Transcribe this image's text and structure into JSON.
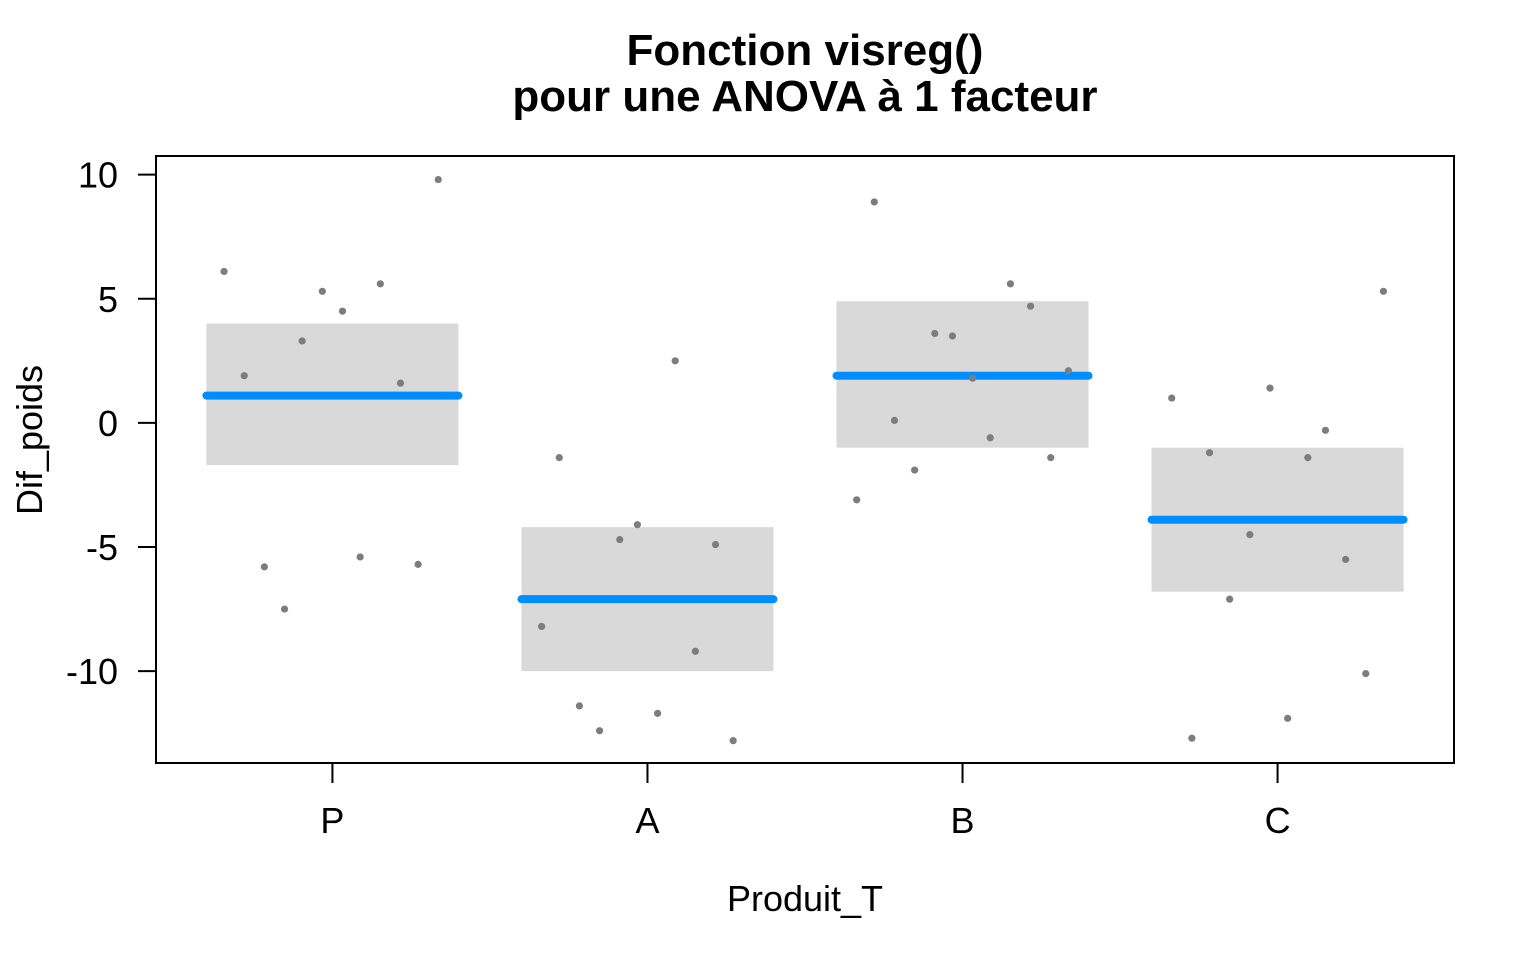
{
  "chart_data": {
    "type": "scatter",
    "variant": "visreg-anova-partial-residuals",
    "title_lines": [
      "Fonction visreg()",
      "pour une ANOVA à 1 facteur"
    ],
    "xlabel": "Produit_T",
    "ylabel": "Dif_poids",
    "categories": [
      "P",
      "A",
      "B",
      "C"
    ],
    "y_ticks": [
      10,
      5,
      0,
      -5,
      -10
    ],
    "ylim": [
      -13.7,
      10.75
    ],
    "xlim": [
      0.44,
      4.56
    ],
    "band_half_width": 0.4,
    "grid": false,
    "legend_position": "none",
    "colors": {
      "fit_line": "#008DFF",
      "ci_band": "#D9D9D9",
      "points": "#7D7D7D",
      "axis": "#000000",
      "background": "#FFFFFF"
    },
    "groups": [
      {
        "label": "P",
        "position": 1,
        "fit": 1.1,
        "ci_low": -1.7,
        "ci_high": 4.0,
        "points": [
          {
            "dx": 0.42,
            "y": 9.8
          },
          {
            "dx": -0.43,
            "y": 6.1
          },
          {
            "dx": 0.19,
            "y": 5.6
          },
          {
            "dx": -0.04,
            "y": 5.3
          },
          {
            "dx": 0.04,
            "y": 4.5
          },
          {
            "dx": -0.12,
            "y": 3.3
          },
          {
            "dx": -0.35,
            "y": 1.9
          },
          {
            "dx": 0.27,
            "y": 1.6
          },
          {
            "dx": 0.11,
            "y": -5.4
          },
          {
            "dx": 0.34,
            "y": -5.7
          },
          {
            "dx": -0.27,
            "y": -5.8
          },
          {
            "dx": -0.19,
            "y": -7.5
          }
        ]
      },
      {
        "label": "A",
        "position": 2,
        "fit": -7.1,
        "ci_low": -10.0,
        "ci_high": -4.2,
        "points": [
          {
            "dx": 0.11,
            "y": 2.5
          },
          {
            "dx": -0.35,
            "y": -1.4
          },
          {
            "dx": -0.04,
            "y": -4.1
          },
          {
            "dx": -0.11,
            "y": -4.7
          },
          {
            "dx": 0.27,
            "y": -4.9
          },
          {
            "dx": -0.42,
            "y": -8.2
          },
          {
            "dx": 0.19,
            "y": -9.2
          },
          {
            "dx": -0.27,
            "y": -11.4
          },
          {
            "dx": 0.04,
            "y": -11.7
          },
          {
            "dx": -0.19,
            "y": -12.4
          },
          {
            "dx": 0.34,
            "y": -12.8
          }
        ]
      },
      {
        "label": "B",
        "position": 3,
        "fit": 1.9,
        "ci_low": -1.0,
        "ci_high": 4.9,
        "points": [
          {
            "dx": -0.35,
            "y": 8.9
          },
          {
            "dx": 0.19,
            "y": 5.6
          },
          {
            "dx": 0.27,
            "y": 4.7
          },
          {
            "dx": -0.11,
            "y": 3.6
          },
          {
            "dx": -0.04,
            "y": 3.5
          },
          {
            "dx": 0.42,
            "y": 2.1
          },
          {
            "dx": 0.04,
            "y": 1.8
          },
          {
            "dx": -0.27,
            "y": 0.1
          },
          {
            "dx": 0.11,
            "y": -0.6
          },
          {
            "dx": 0.35,
            "y": -1.4
          },
          {
            "dx": -0.19,
            "y": -1.9
          },
          {
            "dx": -0.42,
            "y": -3.1
          }
        ]
      },
      {
        "label": "C",
        "position": 4,
        "fit": -3.9,
        "ci_low": -6.8,
        "ci_high": -1.0,
        "points": [
          {
            "dx": 0.42,
            "y": 5.3
          },
          {
            "dx": -0.03,
            "y": 1.4
          },
          {
            "dx": -0.42,
            "y": 1.0
          },
          {
            "dx": 0.19,
            "y": -0.3
          },
          {
            "dx": -0.27,
            "y": -1.2
          },
          {
            "dx": 0.12,
            "y": -1.4
          },
          {
            "dx": -0.11,
            "y": -4.5
          },
          {
            "dx": 0.27,
            "y": -5.5
          },
          {
            "dx": -0.19,
            "y": -7.1
          },
          {
            "dx": 0.35,
            "y": -10.1
          },
          {
            "dx": 0.04,
            "y": -11.9
          },
          {
            "dx": -0.34,
            "y": -12.7
          }
        ]
      }
    ]
  }
}
